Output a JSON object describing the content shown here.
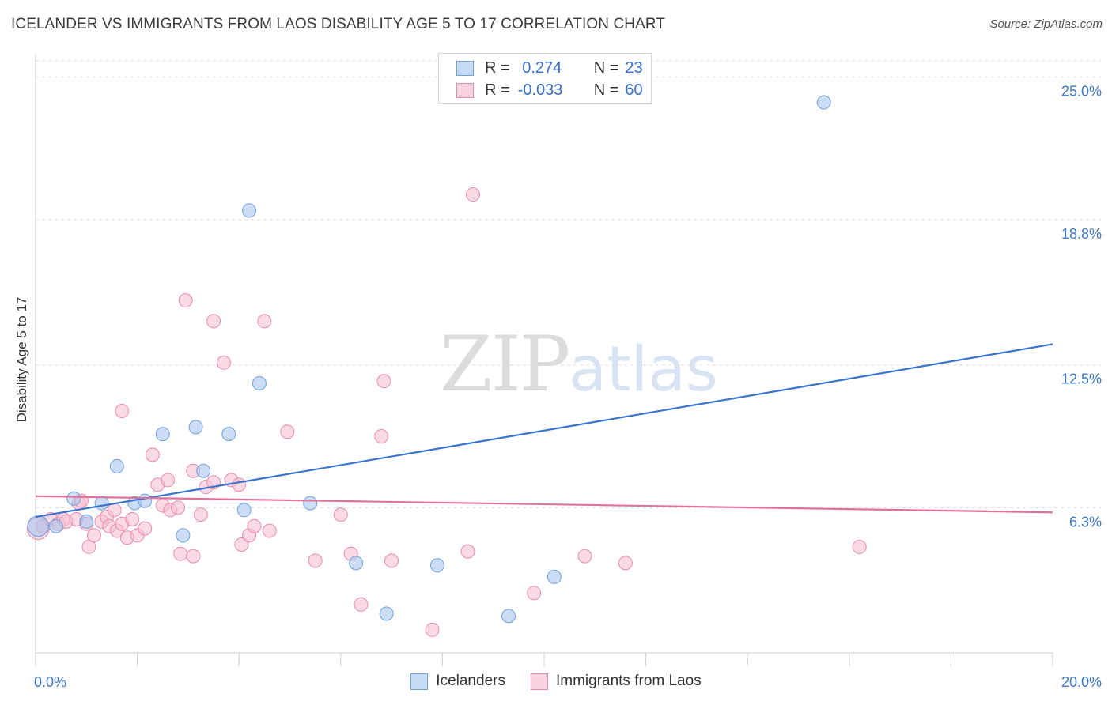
{
  "header": {
    "title": "ICELANDER VS IMMIGRANTS FROM LAOS DISABILITY AGE 5 TO 17 CORRELATION CHART",
    "source": "Source: ZipAtlas.com"
  },
  "watermark": {
    "zip": "ZIP",
    "atlas": "atlas"
  },
  "legend": {
    "rows": [
      {
        "r_label": "R =",
        "r_value": " 0.274",
        "n_label": "N =",
        "n_value": "23"
      },
      {
        "r_label": "R =",
        "r_value": "-0.033",
        "n_label": "N =",
        "n_value": "60"
      }
    ]
  },
  "bottom_legend": {
    "series1": "Icelanders",
    "series2": "Immigrants from Laos"
  },
  "colors": {
    "blue_fill": "#a9c8ee",
    "blue_stroke": "#6f9fdc",
    "blue_line": "#3a74cf",
    "pink_fill": "#f6bdd0",
    "pink_stroke": "#e98aab",
    "pink_line": "#e2719a",
    "tick_label": "#3f78c9",
    "grid": "#dddddd"
  },
  "chart_data": {
    "type": "scatter",
    "title": "ICELANDER VS IMMIGRANTS FROM LAOS DISABILITY AGE 5 TO 17 CORRELATION CHART",
    "xlabel": "",
    "ylabel": "Disability Age 5 to 17",
    "xlim": [
      0,
      20
    ],
    "ylim": [
      0,
      25.7
    ],
    "x_tick_labels": [
      {
        "value": 0,
        "label": "0.0%"
      },
      {
        "value": 20,
        "label": "20.0%"
      }
    ],
    "y_tick_labels": [
      {
        "value": 6.3,
        "label": "6.3%"
      },
      {
        "value": 12.5,
        "label": "12.5%"
      },
      {
        "value": 18.8,
        "label": "18.8%"
      },
      {
        "value": 25.0,
        "label": "25.0%"
      }
    ],
    "grid": true,
    "legend_position": "top-center",
    "series": [
      {
        "name": "Icelanders",
        "color": "#a9c8ee",
        "r": 0.274,
        "n": 23,
        "trend": [
          [
            0,
            5.9
          ],
          [
            20,
            13.4
          ]
        ],
        "points": [
          [
            0.05,
            5.5
          ],
          [
            0.4,
            5.5
          ],
          [
            0.75,
            6.7
          ],
          [
            1.0,
            5.7
          ],
          [
            1.3,
            6.5
          ],
          [
            1.6,
            8.1
          ],
          [
            1.95,
            6.5
          ],
          [
            2.15,
            6.6
          ],
          [
            2.5,
            9.5
          ],
          [
            2.9,
            5.1
          ],
          [
            3.15,
            9.8
          ],
          [
            3.3,
            7.9
          ],
          [
            3.8,
            9.5
          ],
          [
            4.1,
            6.2
          ],
          [
            4.2,
            19.2
          ],
          [
            4.4,
            11.7
          ],
          [
            5.4,
            6.5
          ],
          [
            6.3,
            3.9
          ],
          [
            6.9,
            1.7
          ],
          [
            7.9,
            3.8
          ],
          [
            9.3,
            1.6
          ],
          [
            10.2,
            3.3
          ],
          [
            15.5,
            23.9
          ]
        ]
      },
      {
        "name": "Immigrants from Laos",
        "color": "#f6bdd0",
        "r": -0.033,
        "n": 60,
        "trend": [
          [
            0,
            6.8
          ],
          [
            20,
            6.1
          ]
        ],
        "points": [
          [
            0.05,
            5.4
          ],
          [
            0.15,
            5.5
          ],
          [
            0.3,
            5.8
          ],
          [
            0.45,
            5.6
          ],
          [
            0.55,
            5.8
          ],
          [
            0.6,
            5.7
          ],
          [
            0.8,
            5.8
          ],
          [
            0.85,
            6.5
          ],
          [
            0.9,
            6.6
          ],
          [
            1.0,
            5.6
          ],
          [
            1.05,
            4.6
          ],
          [
            1.15,
            5.1
          ],
          [
            1.3,
            5.7
          ],
          [
            1.4,
            5.9
          ],
          [
            1.45,
            5.5
          ],
          [
            1.55,
            6.2
          ],
          [
            1.6,
            5.3
          ],
          [
            1.7,
            5.6
          ],
          [
            1.7,
            10.5
          ],
          [
            1.8,
            5.0
          ],
          [
            1.9,
            5.8
          ],
          [
            2.0,
            5.1
          ],
          [
            2.15,
            5.4
          ],
          [
            2.3,
            8.6
          ],
          [
            2.4,
            7.3
          ],
          [
            2.5,
            6.4
          ],
          [
            2.6,
            7.5
          ],
          [
            2.65,
            6.2
          ],
          [
            2.8,
            6.3
          ],
          [
            2.85,
            4.3
          ],
          [
            2.95,
            15.3
          ],
          [
            3.1,
            4.2
          ],
          [
            3.1,
            7.9
          ],
          [
            3.25,
            6.0
          ],
          [
            3.35,
            7.2
          ],
          [
            3.5,
            7.4
          ],
          [
            3.5,
            14.4
          ],
          [
            3.7,
            12.6
          ],
          [
            3.85,
            7.5
          ],
          [
            4.0,
            7.3
          ],
          [
            4.05,
            4.7
          ],
          [
            4.2,
            5.1
          ],
          [
            4.3,
            5.5
          ],
          [
            4.5,
            14.4
          ],
          [
            4.6,
            5.3
          ],
          [
            4.95,
            9.6
          ],
          [
            5.5,
            4.0
          ],
          [
            6.0,
            6.0
          ],
          [
            6.2,
            4.3
          ],
          [
            6.4,
            2.1
          ],
          [
            6.8,
            9.4
          ],
          [
            6.85,
            11.8
          ],
          [
            7.0,
            4.0
          ],
          [
            7.8,
            1.0
          ],
          [
            8.5,
            4.4
          ],
          [
            8.6,
            19.9
          ],
          [
            9.8,
            2.6
          ],
          [
            10.8,
            4.2
          ],
          [
            11.6,
            3.9
          ],
          [
            16.2,
            4.6
          ]
        ]
      }
    ]
  }
}
